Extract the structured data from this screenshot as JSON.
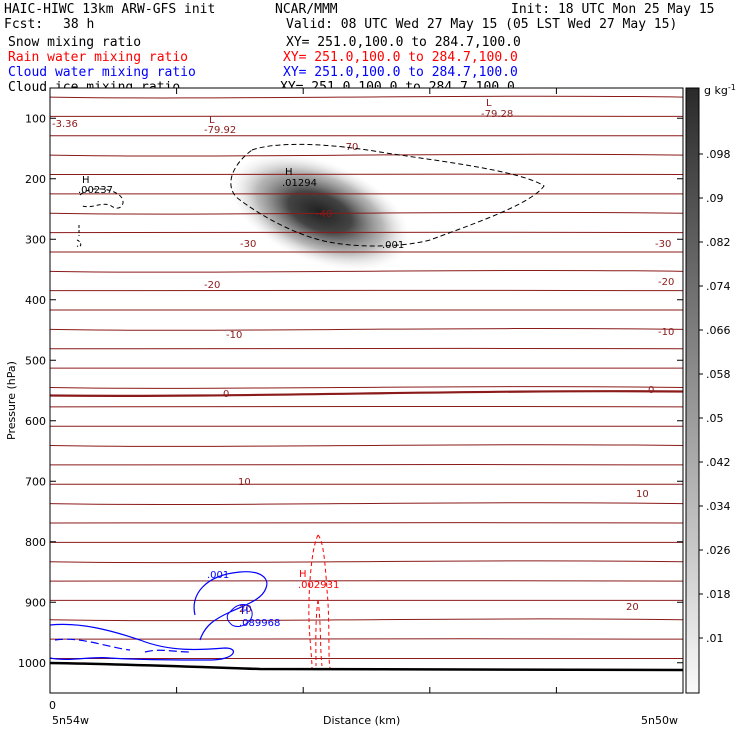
{
  "header": {
    "title_left": "HAIC-HIWC 13km ARW-GFS init",
    "org": "NCAR/MMM",
    "init": "Init: 18 UTC Mon 25 May 15",
    "fcst_label": "Fcst:",
    "fcst_value": "38 h",
    "valid": "Valid: 08 UTC Wed 27 May 15 (05 LST Wed 27 May 15)"
  },
  "fields": [
    {
      "name": "Snow mixing ratio",
      "xy": "XY= 251.0,100.0 to 284.7,100.0",
      "color": "#000000"
    },
    {
      "name": "Rain water mixing ratio",
      "xy": "XY= 251.0,100.0 to 284.7,100.0",
      "color": "#ff0000"
    },
    {
      "name": "Cloud water mixing ratio",
      "xy": "XY= 251.0,100.0 to 284.7,100.0",
      "color": "#0000ff"
    },
    {
      "name": "Cloud ice mixing ratio",
      "xy": "XY= 251.0,100.0 to 284.7,100.0",
      "color": "#000000"
    }
  ],
  "chart_data": {
    "type": "contour",
    "xlabel": "Distance (km)",
    "ylabel": "Pressure (hPa)",
    "x_left_label": "5n54w",
    "x_right_label": "5n50w",
    "x_zero_label": "0",
    "x_range": [
      0,
      5
    ],
    "y_range": [
      1050,
      50
    ],
    "y_ticks": [
      100,
      200,
      300,
      400,
      500,
      600,
      700,
      800,
      900,
      1000
    ],
    "colorbar": {
      "unit": "g kg",
      "unit_exp": "-1",
      "ticks": [
        ".098",
        ".09",
        ".082",
        ".074",
        ".066",
        ".058",
        ".05",
        ".042",
        ".034",
        ".026",
        ".018",
        ".01"
      ],
      "values": [
        0.098,
        0.09,
        0.082,
        0.074,
        0.066,
        0.058,
        0.05,
        0.042,
        0.034,
        0.026,
        0.018,
        0.01
      ]
    },
    "temperature_labels": [
      "-70",
      "-40",
      "-30",
      "-30",
      "-20",
      "-20",
      "-10",
      "-10",
      "0",
      "0",
      "10",
      "10",
      "20",
      "20"
    ],
    "extrema": [
      {
        "kind": "L",
        "value": "-79.92"
      },
      {
        "kind": "L",
        "value": "-79.28"
      },
      {
        "kind": "",
        "value": "-3.36"
      },
      {
        "kind": "H",
        "value": ".00237"
      },
      {
        "kind": "H",
        "value": ".01294"
      },
      {
        "kind": "H",
        "value": ".002931"
      },
      {
        "kind": "H",
        "value": ".089968"
      }
    ],
    "cloud_labels": [
      ".001",
      ".001"
    ],
    "colors": {
      "isotherm": "#8b1a1a",
      "rain": "#ff0000",
      "cloud_water": "#0000ff",
      "snow": "#000000"
    }
  }
}
